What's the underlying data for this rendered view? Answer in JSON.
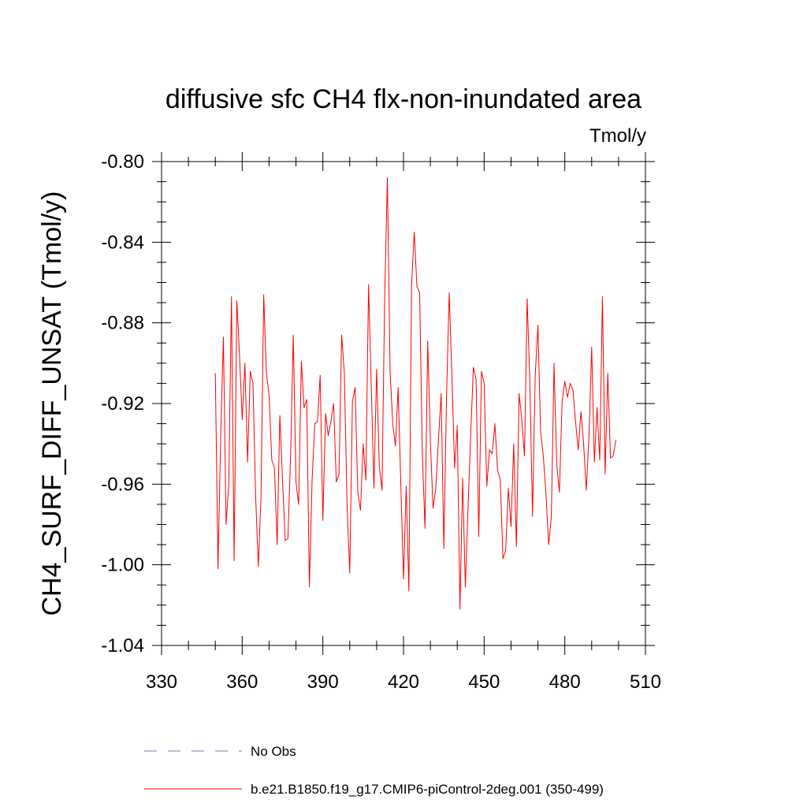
{
  "chart_data": {
    "type": "line",
    "title": "diffusive sfc CH4 flx-non-inundated area",
    "units": "Tmol/y",
    "ylabel": "CH4_SURF_DIFF_UNSAT  (Tmol/y)",
    "xlabel": "",
    "xlim": [
      330,
      510
    ],
    "ylim": [
      -1.04,
      -0.8
    ],
    "x_major_ticks": [
      330,
      360,
      390,
      420,
      450,
      480,
      510
    ],
    "x_tick_labels": [
      "330",
      "360",
      "390",
      "420",
      "450",
      "480",
      "510"
    ],
    "y_major_ticks": [
      -1.04,
      -1.0,
      -0.96,
      -0.92,
      -0.88,
      -0.84,
      -0.8
    ],
    "y_tick_labels": [
      "-1.04",
      "-1.00",
      "-0.96",
      "-0.92",
      "-0.88",
      "-0.84",
      "-0.80"
    ],
    "x_minor_step": 10,
    "y_minor_step": 0.01,
    "grid": false,
    "legend_position": "bottom",
    "series": [
      {
        "name": "No Obs",
        "color": "#7070c0",
        "dash": true,
        "values": []
      },
      {
        "name": "b.e21.B1850.f19_g17.CMIP6-piControl-2deg.001 (350-499)",
        "color": "#ff0000",
        "dash": false,
        "x_start": 350,
        "values": [
          -0.905,
          -1.002,
          -0.936,
          -0.887,
          -0.98,
          -0.96,
          -0.867,
          -0.998,
          -0.869,
          -0.896,
          -0.928,
          -0.9,
          -0.949,
          -0.904,
          -0.91,
          -0.966,
          -1.001,
          -0.966,
          -0.866,
          -0.905,
          -0.916,
          -0.948,
          -0.952,
          -0.99,
          -0.926,
          -0.958,
          -0.988,
          -0.987,
          -0.946,
          -0.886,
          -0.959,
          -0.97,
          -0.899,
          -0.922,
          -0.918,
          -1.011,
          -0.958,
          -0.93,
          -0.929,
          -0.906,
          -0.978,
          -0.925,
          -0.936,
          -0.929,
          -0.92,
          -0.959,
          -0.955,
          -0.886,
          -0.905,
          -0.97,
          -1.004,
          -0.919,
          -0.912,
          -0.964,
          -0.973,
          -0.94,
          -0.958,
          -0.861,
          -0.911,
          -0.962,
          -0.903,
          -0.951,
          -0.963,
          -0.868,
          -0.808,
          -0.904,
          -0.93,
          -0.941,
          -0.912,
          -0.96,
          -1.007,
          -0.961,
          -1.013,
          -0.861,
          -0.835,
          -0.862,
          -0.865,
          -0.945,
          -0.982,
          -0.889,
          -0.939,
          -0.972,
          -0.962,
          -0.938,
          -0.915,
          -0.992,
          -0.917,
          -0.865,
          -0.906,
          -0.952,
          -0.931,
          -1.022,
          -0.957,
          -1.011,
          -0.972,
          -0.935,
          -0.902,
          -0.908,
          -0.986,
          -0.904,
          -0.91,
          -0.961,
          -0.943,
          -0.945,
          -0.93,
          -0.953,
          -0.958,
          -0.997,
          -0.993,
          -0.962,
          -0.981,
          -0.94,
          -0.991,
          -0.915,
          -0.928,
          -0.946,
          -0.868,
          -0.909,
          -0.976,
          -0.906,
          -0.881,
          -0.934,
          -0.946,
          -0.965,
          -0.99,
          -0.976,
          -0.9,
          -0.95,
          -0.964,
          -0.919,
          -0.909,
          -0.917,
          -0.91,
          -0.913,
          -0.929,
          -0.943,
          -0.924,
          -0.94,
          -0.963,
          -0.936,
          -0.892,
          -0.949,
          -0.922,
          -0.948,
          -0.867,
          -0.955,
          -0.905,
          -0.947,
          -0.946,
          -0.938
        ]
      }
    ]
  }
}
